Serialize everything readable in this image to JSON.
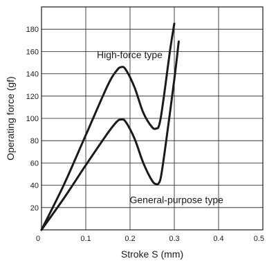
{
  "chart_data": {
    "type": "line",
    "title": "",
    "xlabel": "Stroke S (mm)",
    "ylabel": "Operating force (gf)",
    "xlim": [
      0,
      0.5
    ],
    "ylim": [
      0,
      200
    ],
    "x_ticks": [
      "0",
      "0.1",
      "0.2",
      "0.3",
      "0.4",
      "0.5"
    ],
    "x_tick_values": [
      0,
      0.1,
      0.2,
      0.3,
      0.4,
      0.5
    ],
    "y_ticks": [
      "20",
      "40",
      "60",
      "80",
      "100",
      "120",
      "140",
      "160",
      "180"
    ],
    "y_tick_values": [
      20,
      40,
      60,
      80,
      100,
      120,
      140,
      160,
      180
    ],
    "grid": true,
    "series": [
      {
        "name": "High-force type",
        "x": [
          0.0,
          0.05,
          0.1,
          0.15,
          0.17,
          0.18,
          0.19,
          0.21,
          0.23,
          0.25,
          0.26,
          0.265,
          0.27,
          0.28,
          0.29,
          0.3
        ],
        "y": [
          0,
          40,
          85,
          130,
          143,
          146,
          144,
          128,
          105,
          92,
          91,
          93,
          102,
          130,
          160,
          185
        ]
      },
      {
        "name": "General-purpose type",
        "x": [
          0.0,
          0.05,
          0.1,
          0.15,
          0.17,
          0.18,
          0.19,
          0.21,
          0.23,
          0.25,
          0.26,
          0.265,
          0.27,
          0.28,
          0.3,
          0.31
        ],
        "y": [
          0,
          28,
          58,
          87,
          97,
          99,
          97,
          82,
          60,
          44,
          41,
          42,
          48,
          75,
          135,
          169
        ]
      }
    ],
    "annotations": [
      {
        "text": "High-force type",
        "x": 0.125,
        "y": 154
      },
      {
        "text": "General-purpose type",
        "x": 0.305,
        "y": 24
      }
    ]
  }
}
